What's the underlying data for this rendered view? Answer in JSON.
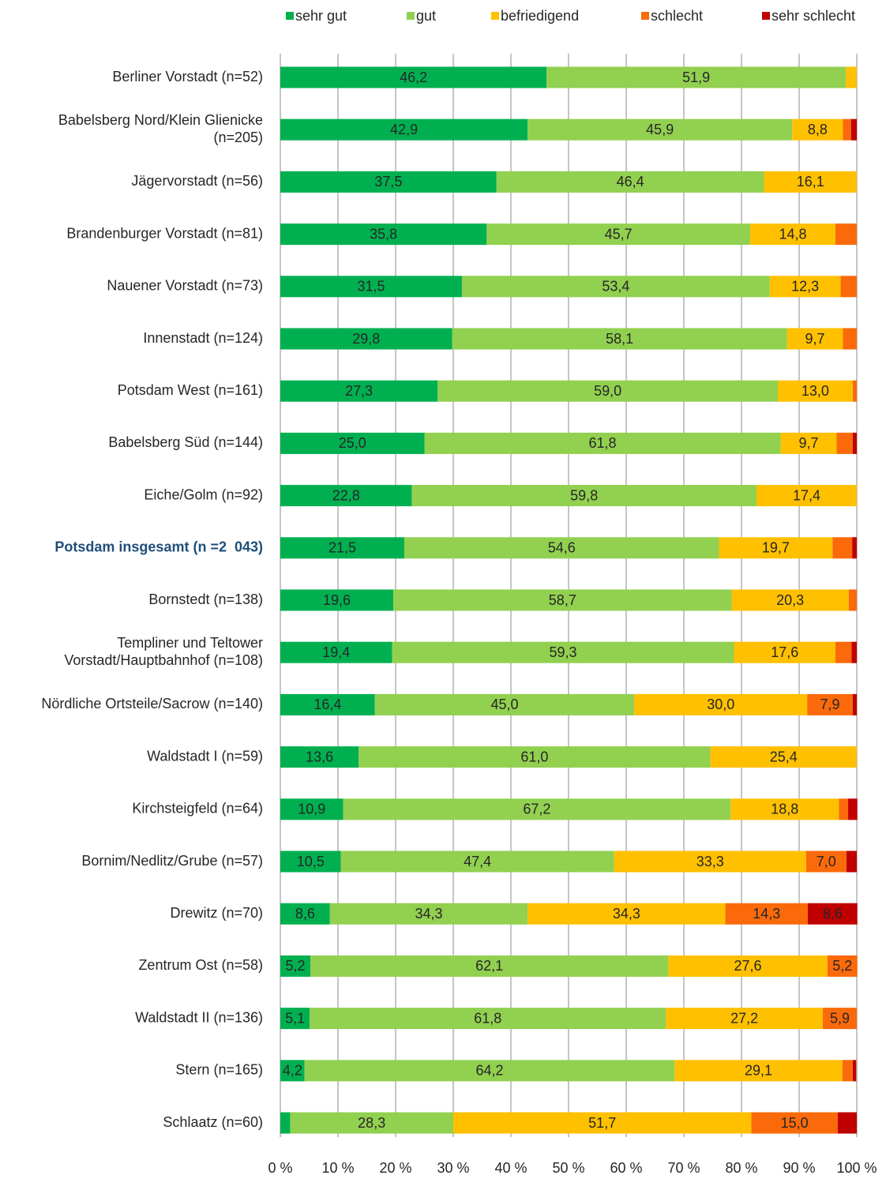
{
  "chart_data": {
    "type": "stacked_bar_horizontal",
    "categories": [
      "Berliner Vorstadt (n=52)",
      "Babelsberg Nord/Klein Glienicke\n(n=205)",
      "Jägervorstadt (n=56)",
      "Brandenburger Vorstadt (n=81)",
      "Nauener Vorstadt (n=73)",
      "Innenstadt (n=124)",
      "Potsdam West (n=161)",
      "Babelsberg Süd (n=144)",
      "Eiche/Golm (n=92)",
      "Potsdam insgesamt (n =2  043)",
      "Bornstedt (n=138)",
      "Templiner und Teltower\nVorstadt/Hauptbahnhof (n=108)",
      "Nördliche Ortsteile/Sacrow (n=140)",
      "Waldstadt I (n=59)",
      "Kirchsteigfeld (n=64)",
      "Bornim/Nedlitz/Grube (n=57)",
      "Drewitz (n=70)",
      "Zentrum Ost (n=58)",
      "Waldstadt II (n=136)",
      "Stern (n=165)",
      "Schlaatz (n=60)"
    ],
    "series": [
      {
        "name": "sehr gut",
        "color": "#00b050",
        "values": [
          46.2,
          42.9,
          37.5,
          35.8,
          31.5,
          29.8,
          27.3,
          25.0,
          22.8,
          21.5,
          19.6,
          19.4,
          16.4,
          13.6,
          10.9,
          10.5,
          8.6,
          5.2,
          5.1,
          4.2,
          1.7
        ],
        "value_labels": [
          "46,2",
          "42,9",
          "37,5",
          "35,8",
          "31,5",
          "29,8",
          "27,3",
          "25,0",
          "22,8",
          "21,5",
          "19,6",
          "19,4",
          "16,4",
          "13,6",
          "10,9",
          "10,5",
          "8,6",
          "5,2",
          "5,1",
          "4,2",
          null
        ]
      },
      {
        "name": "gut",
        "color": "#92d050",
        "values": [
          51.9,
          45.9,
          46.4,
          45.7,
          53.4,
          58.1,
          59.0,
          61.8,
          59.8,
          54.6,
          58.7,
          59.3,
          45.0,
          61.0,
          67.2,
          47.4,
          34.3,
          62.1,
          61.8,
          64.2,
          28.3
        ],
        "value_labels": [
          "51,9",
          "45,9",
          "46,4",
          "45,7",
          "53,4",
          "58,1",
          "59,0",
          "61,8",
          "59,8",
          "54,6",
          "58,7",
          "59,3",
          "45,0",
          "61,0",
          "67,2",
          "47,4",
          "34,3",
          "62,1",
          "61,8",
          "64,2",
          "28,3"
        ]
      },
      {
        "name": "befriedigend",
        "color": "#ffc000",
        "values": [
          1.9,
          8.8,
          16.1,
          14.8,
          12.3,
          9.7,
          13.0,
          9.7,
          17.4,
          19.7,
          20.3,
          17.6,
          30.0,
          25.4,
          18.8,
          33.3,
          34.3,
          27.6,
          27.2,
          29.1,
          51.7
        ],
        "value_labels": [
          null,
          "8,8",
          "16,1",
          "14,8",
          "12,3",
          "9,7",
          "13,0",
          "9,7",
          "17,4",
          "19,7",
          "20,3",
          "17,6",
          "30,0",
          "25,4",
          "18,8",
          "33,3",
          "34,3",
          "27,6",
          "27,2",
          "29,1",
          "51,7"
        ]
      },
      {
        "name": "schlecht",
        "color": "#fa6a0a",
        "values": [
          0,
          1.4,
          0,
          3.7,
          2.8,
          2.4,
          0.7,
          2.8,
          0,
          3.4,
          1.4,
          2.8,
          7.9,
          0,
          1.6,
          7.0,
          14.3,
          5.2,
          5.9,
          1.8,
          15.0
        ],
        "value_labels": [
          null,
          null,
          null,
          null,
          null,
          null,
          null,
          null,
          null,
          null,
          null,
          null,
          "7,9",
          null,
          null,
          "7,0",
          "14,3",
          "5,2",
          "5,9",
          null,
          "15,0"
        ]
      },
      {
        "name": "sehr schlecht",
        "color": "#c00000",
        "values": [
          0,
          1.0,
          0,
          0,
          0,
          0,
          0,
          0.7,
          0,
          0.8,
          0,
          0.9,
          0.7,
          0,
          1.6,
          1.8,
          8.6,
          0,
          0,
          0.6,
          3.3
        ],
        "value_labels": [
          null,
          null,
          null,
          null,
          null,
          null,
          null,
          null,
          null,
          null,
          null,
          null,
          null,
          null,
          null,
          null,
          "8,6",
          null,
          null,
          null,
          null
        ]
      }
    ],
    "xlim": [
      0,
      100
    ],
    "xticks": [
      {
        "value": 0,
        "label": "0 %"
      },
      {
        "value": 10,
        "label": "10 %"
      },
      {
        "value": 20,
        "label": "20 %"
      },
      {
        "value": 30,
        "label": "30 %"
      },
      {
        "value": 40,
        "label": "40 %"
      },
      {
        "value": 50,
        "label": "50 %"
      },
      {
        "value": 60,
        "label": "60 %"
      },
      {
        "value": 70,
        "label": "70 %"
      },
      {
        "value": 80,
        "label": "80 %"
      },
      {
        "value": 90,
        "label": "90 %"
      },
      {
        "value": 100,
        "label": "100 %"
      }
    ],
    "grid": true,
    "legend": "top"
  }
}
